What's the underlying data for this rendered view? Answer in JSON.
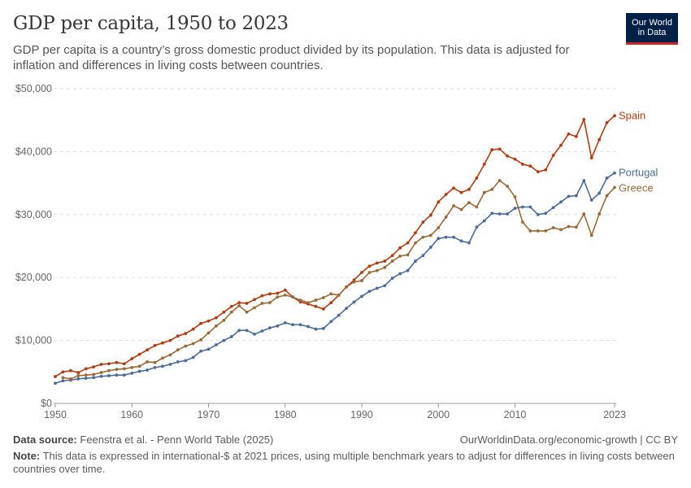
{
  "header": {
    "title": "GDP per capita, 1950 to 2023",
    "subtitle": "GDP per capita is a country’s gross domestic product divided by its population. This data is adjusted for inflation and differences in living costs between countries.",
    "logo_line1": "Our World",
    "logo_line2": "in Data"
  },
  "footer": {
    "source_label": "Data source:",
    "source": "Feenstra et al. - Penn World Table (2025)",
    "license": "OurWorldinData.org/economic-growth | CC BY",
    "note_label": "Note:",
    "note": "This data is expressed in international-$ at 2021 prices, using multiple benchmark years to adjust for differences in living costs between countries over time."
  },
  "chart_data": {
    "type": "line",
    "title": "GDP per capita, 1950 to 2023",
    "xlabel": "",
    "ylabel": "",
    "xlim": [
      1950,
      2023
    ],
    "ylim": [
      0,
      50000
    ],
    "grid": "horizontal dashed",
    "legend": "right end labels",
    "x_ticks": [
      1950,
      1960,
      1970,
      1980,
      1990,
      2000,
      2010,
      2023
    ],
    "x_tick_labels": [
      "1950",
      "1960",
      "1970",
      "1980",
      "1990",
      "2000",
      "2010",
      "2023"
    ],
    "y_ticks": [
      0,
      10000,
      20000,
      30000,
      40000,
      50000
    ],
    "y_tick_labels": [
      "$0",
      "$10,000",
      "$20,000",
      "$30,000",
      "$40,000",
      "$50,000"
    ],
    "x_start": 1950,
    "series": [
      {
        "name": "Spain",
        "color": "#b43a0e",
        "values": [
          4260,
          5000,
          5200,
          4900,
          5500,
          5800,
          6200,
          6300,
          6500,
          6300,
          7100,
          7800,
          8500,
          9200,
          9600,
          10000,
          10700,
          11100,
          11800,
          12700,
          13100,
          13600,
          14500,
          15400,
          16000,
          15900,
          16500,
          17100,
          17400,
          17500,
          18000,
          16900,
          16100,
          15800,
          15400,
          15000,
          16000,
          17200,
          18500,
          19600,
          20800,
          21800,
          22300,
          22600,
          23500,
          24700,
          25500,
          27100,
          28800,
          29900,
          32000,
          33200,
          34200,
          33500,
          34000,
          35800,
          38000,
          40300,
          40400,
          39300,
          38800,
          38000,
          37700,
          36800,
          37100,
          39400,
          41000,
          42800,
          42400,
          45100,
          39000,
          41900,
          44600,
          45700
        ]
      },
      {
        "name": "Portugal",
        "color": "#4c6a9c",
        "values": [
          3200,
          3600,
          3700,
          3900,
          4000,
          4100,
          4300,
          4400,
          4500,
          4500,
          4800,
          5100,
          5300,
          5700,
          5900,
          6200,
          6600,
          6800,
          7300,
          8300,
          8600,
          9300,
          10000,
          10600,
          11600,
          11600,
          11000,
          11500,
          12000,
          12300,
          12800,
          12500,
          12500,
          12200,
          11800,
          11900,
          13000,
          14000,
          15100,
          16100,
          17000,
          17800,
          18300,
          18700,
          19900,
          20600,
          21100,
          22600,
          23500,
          24800,
          26200,
          26400,
          26400,
          25800,
          25500,
          28000,
          29000,
          30200,
          30100,
          30100,
          31000,
          31200,
          31200,
          30000,
          30200,
          31100,
          32000,
          32900,
          33000,
          35400,
          32300,
          33400,
          35800,
          36600
        ]
      },
      {
        "name": "Greece",
        "color": "#9a6a36",
        "values": [
          null,
          4100,
          3900,
          4400,
          4500,
          4600,
          4900,
          5200,
          5400,
          5500,
          5700,
          5900,
          6600,
          6500,
          7200,
          7700,
          8500,
          9100,
          9500,
          10100,
          11200,
          12300,
          13200,
          14500,
          15500,
          14500,
          15200,
          15900,
          16000,
          16900,
          17200,
          16900,
          16400,
          16000,
          16400,
          16800,
          17400,
          17200,
          18500,
          19300,
          19500,
          20800,
          21100,
          21600,
          22600,
          23400,
          23600,
          25500,
          26400,
          26700,
          27900,
          29600,
          31400,
          30800,
          31900,
          31200,
          33500,
          34000,
          35400,
          34500,
          32800,
          28800,
          27400,
          27400,
          27400,
          27900,
          27600,
          28100,
          28000,
          30100,
          26700,
          30100,
          33000,
          34300
        ]
      }
    ]
  }
}
